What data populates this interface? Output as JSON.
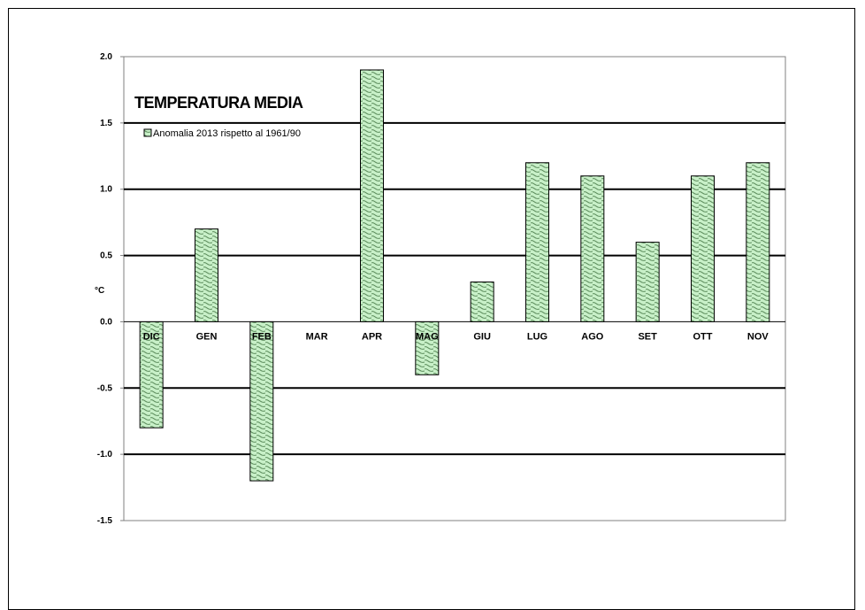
{
  "chart_data": {
    "type": "bar",
    "title": "TEMPERATURA MEDIA",
    "ylabel": "°C",
    "xlabel": "",
    "categories": [
      "DIC",
      "GEN",
      "FEB",
      "MAR",
      "APR",
      "MAG",
      "GIU",
      "LUG",
      "AGO",
      "SET",
      "OTT",
      "NOV"
    ],
    "series": [
      {
        "name": "Anomalia 2013 rispetto al 1961/90",
        "values": [
          -0.8,
          0.7,
          -1.2,
          0.0,
          1.9,
          -0.4,
          0.3,
          1.2,
          1.1,
          0.6,
          1.1,
          1.2
        ]
      }
    ],
    "ylim": [
      -1.5,
      2.0
    ],
    "yticks": [
      2.0,
      1.5,
      1.0,
      0.5,
      0.0,
      -0.5,
      -1.0,
      -1.5
    ],
    "ytick_labels": [
      "2.0",
      "1.5",
      "1.0",
      "0.5",
      "0.0",
      "-0.5",
      "-1.0",
      "-1.5"
    ],
    "grid": true,
    "legend_position": "top-left",
    "colors": {
      "bar_fill": "#c8f0c8",
      "bar_pattern": "#5a8a5a",
      "bar_stroke": "#000000",
      "axis": "#808080"
    }
  }
}
